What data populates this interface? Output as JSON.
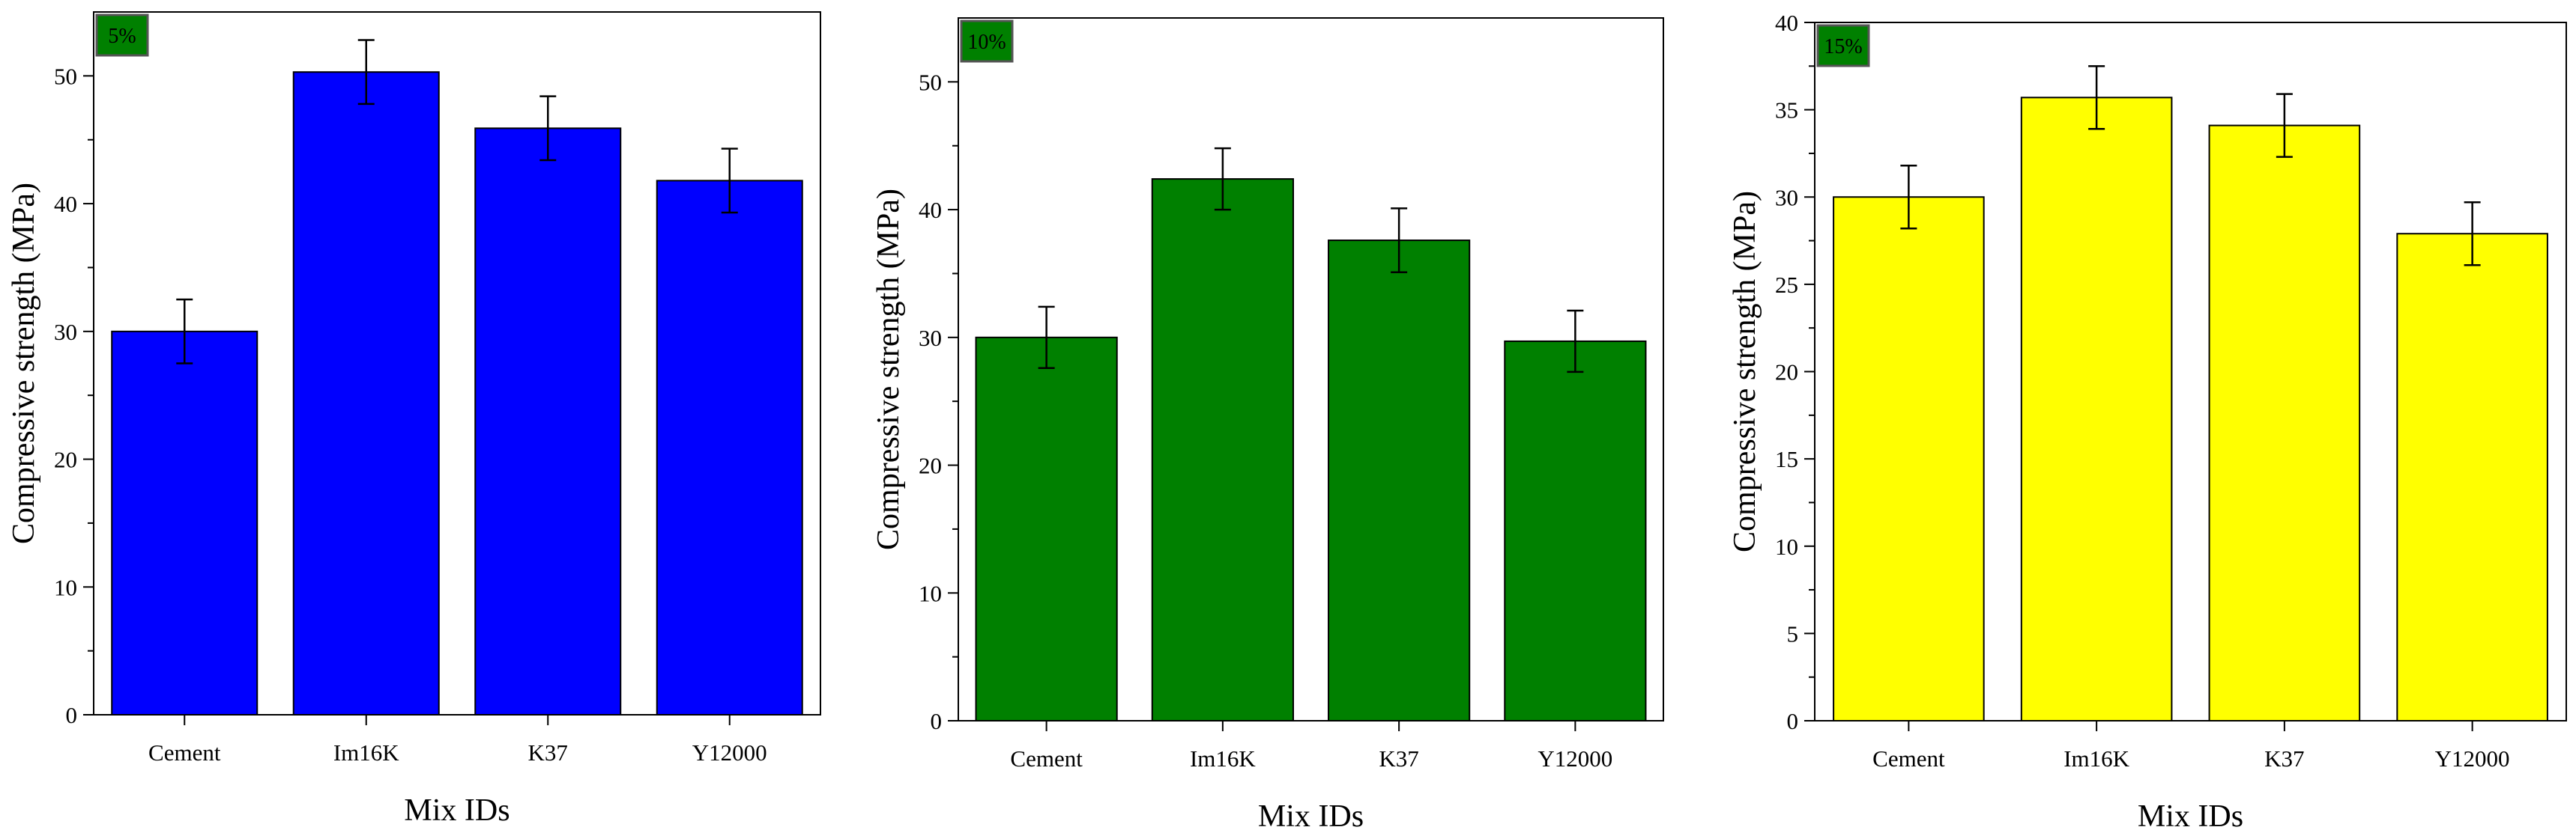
{
  "chart_data": [
    {
      "type": "bar",
      "badge": "5%",
      "categories": [
        "Cement",
        "Im16K",
        "K37",
        "Y12000"
      ],
      "values": [
        30.0,
        50.3,
        45.9,
        41.8
      ],
      "errors": [
        2.5,
        2.5,
        2.5,
        2.5
      ],
      "xlabel": "Mix IDs",
      "ylabel": "Compressive strength (MPa)",
      "ylim": [
        0,
        55
      ],
      "yticks": [
        0,
        10,
        20,
        30,
        40,
        50
      ],
      "bar_color": "#0000ff",
      "badge_color": "#008000"
    },
    {
      "type": "bar",
      "badge": "10%",
      "categories": [
        "Cement",
        "Im16K",
        "K37",
        "Y12000"
      ],
      "values": [
        30.0,
        42.4,
        37.6,
        29.7
      ],
      "errors": [
        2.4,
        2.4,
        2.5,
        2.4
      ],
      "xlabel": "Mix IDs",
      "ylabel": "Compressive strength (MPa)",
      "ylim": [
        0,
        55
      ],
      "yticks": [
        0,
        10,
        20,
        30,
        40,
        50
      ],
      "bar_color": "#008000",
      "badge_color": "#008000"
    },
    {
      "type": "bar",
      "badge": "15%",
      "categories": [
        "Cement",
        "Im16K",
        "K37",
        "Y12000"
      ],
      "values": [
        30.0,
        35.7,
        34.1,
        27.9
      ],
      "errors": [
        1.8,
        1.8,
        1.8,
        1.8
      ],
      "xlabel": "Mix IDs",
      "ylabel": "Compressive strength (MPa)",
      "ylim": [
        0,
        40
      ],
      "yticks": [
        0,
        5,
        10,
        15,
        20,
        25,
        30,
        35,
        40
      ],
      "bar_color": "#ffff00",
      "badge_color": "#008000"
    }
  ]
}
